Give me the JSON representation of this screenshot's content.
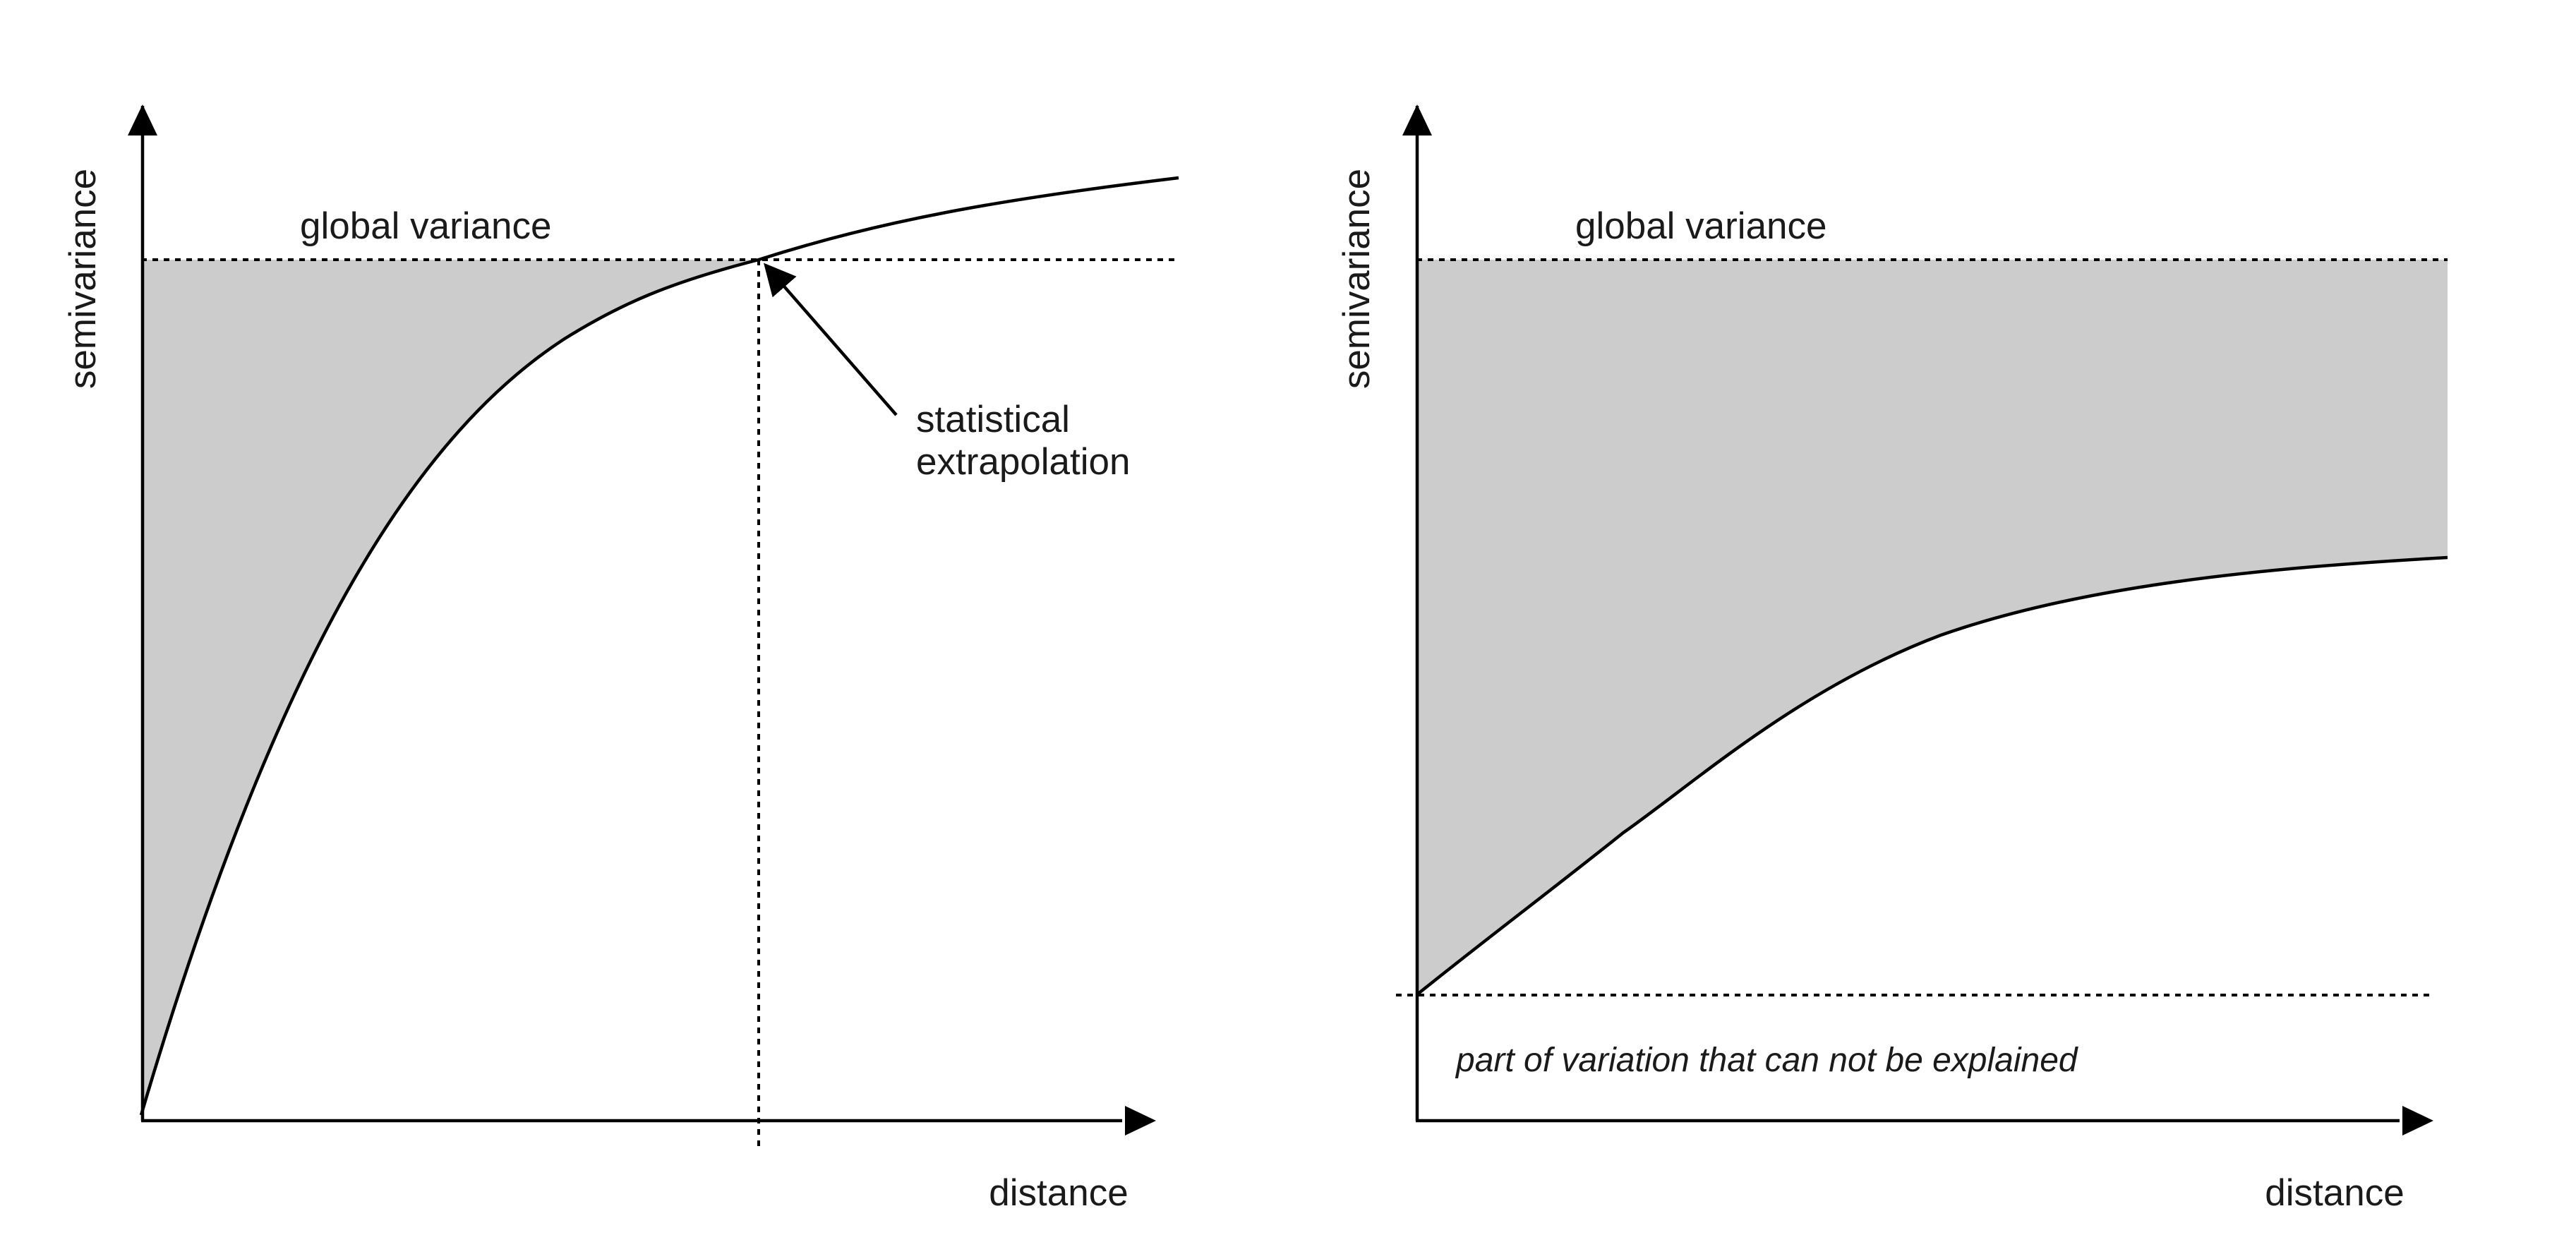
{
  "panels": [
    {
      "y_axis_label": "semivariance",
      "x_axis_label": "distance",
      "reference_line_label": "global variance",
      "annotation_line1": "statistical",
      "annotation_line2": "extrapolation"
    },
    {
      "y_axis_label": "semivariance",
      "x_axis_label": "distance",
      "reference_line_label": "global variance",
      "nugget_label": "part of variation that can not be explained"
    }
  ],
  "colors": {
    "shaded_region": "#cccccc",
    "lines": "#000000",
    "text": "#1a1a1a"
  }
}
